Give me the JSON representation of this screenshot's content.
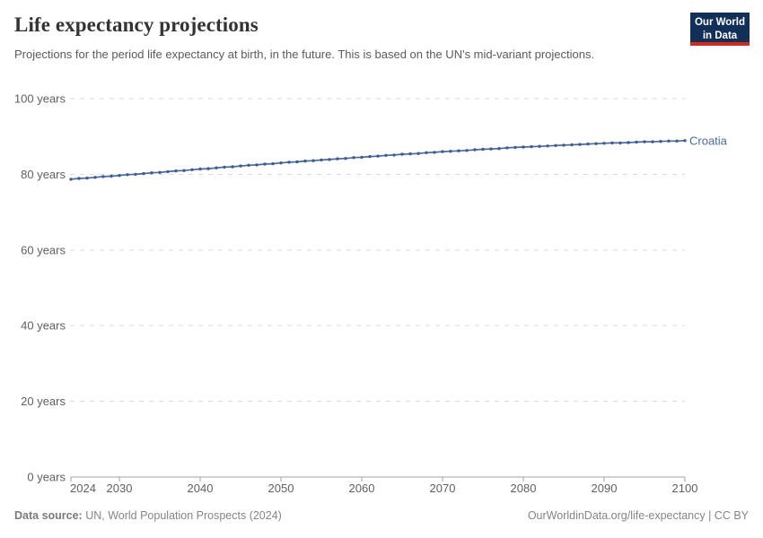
{
  "header": {
    "title": "Life expectancy projections",
    "subtitle": "Projections for the period life expectancy at birth, in the future. This is based on the UN's mid-variant projections.",
    "logo": {
      "line1": "Our World",
      "line2": "in Data"
    }
  },
  "footer": {
    "source_label": "Data source:",
    "source_text": " UN, World Population Prospects (2024)",
    "link_text": "OurWorldinData.org/life-expectancy | CC BY"
  },
  "colors": {
    "line": "#4c6a9c",
    "marker": "#3e5c92",
    "grid": "#dadada",
    "axis": "#a3a3a3",
    "tick_label": "#606060",
    "logo_bg": "#122f58",
    "logo_red": "#d7281d"
  },
  "chart_data": {
    "type": "line",
    "title": "Life expectancy projections",
    "subtitle": "Projections for the period life expectancy at birth, in the future. This is based on the UN's mid-variant projections.",
    "xlabel": "",
    "ylabel": "",
    "xlim": [
      2024,
      2100
    ],
    "ylim": [
      0,
      100
    ],
    "x_ticks": [
      2024,
      2030,
      2040,
      2050,
      2060,
      2070,
      2080,
      2090,
      2100
    ],
    "y_ticks": [
      0,
      20,
      40,
      60,
      80,
      100
    ],
    "y_tick_suffix": " years",
    "grid": "horizontal-dashed",
    "legend_position": "end-of-line-label",
    "series": [
      {
        "name": "Croatia",
        "color": "#4c6a9c",
        "x": [
          2024,
          2025,
          2026,
          2027,
          2028,
          2029,
          2030,
          2031,
          2032,
          2033,
          2034,
          2035,
          2036,
          2037,
          2038,
          2039,
          2040,
          2041,
          2042,
          2043,
          2044,
          2045,
          2046,
          2047,
          2048,
          2049,
          2050,
          2051,
          2052,
          2053,
          2054,
          2055,
          2056,
          2057,
          2058,
          2059,
          2060,
          2061,
          2062,
          2063,
          2064,
          2065,
          2066,
          2067,
          2068,
          2069,
          2070,
          2071,
          2072,
          2073,
          2074,
          2075,
          2076,
          2077,
          2078,
          2079,
          2080,
          2081,
          2082,
          2083,
          2084,
          2085,
          2086,
          2087,
          2088,
          2089,
          2090,
          2091,
          2092,
          2093,
          2094,
          2095,
          2096,
          2097,
          2098,
          2099,
          2100
        ],
        "values": [
          78.7,
          78.9,
          79.0,
          79.2,
          79.4,
          79.5,
          79.7,
          79.9,
          80.0,
          80.2,
          80.4,
          80.5,
          80.7,
          80.9,
          81.0,
          81.2,
          81.4,
          81.5,
          81.7,
          81.9,
          82.0,
          82.2,
          82.4,
          82.5,
          82.7,
          82.8,
          83.0,
          83.2,
          83.3,
          83.5,
          83.6,
          83.8,
          83.9,
          84.1,
          84.2,
          84.4,
          84.5,
          84.7,
          84.8,
          85.0,
          85.1,
          85.3,
          85.4,
          85.5,
          85.7,
          85.8,
          86.0,
          86.1,
          86.2,
          86.3,
          86.5,
          86.6,
          86.7,
          86.8,
          87.0,
          87.1,
          87.2,
          87.3,
          87.4,
          87.5,
          87.6,
          87.7,
          87.8,
          87.9,
          88.0,
          88.1,
          88.2,
          88.3,
          88.3,
          88.4,
          88.5,
          88.6,
          88.6,
          88.7,
          88.8,
          88.8,
          88.9
        ]
      }
    ]
  }
}
